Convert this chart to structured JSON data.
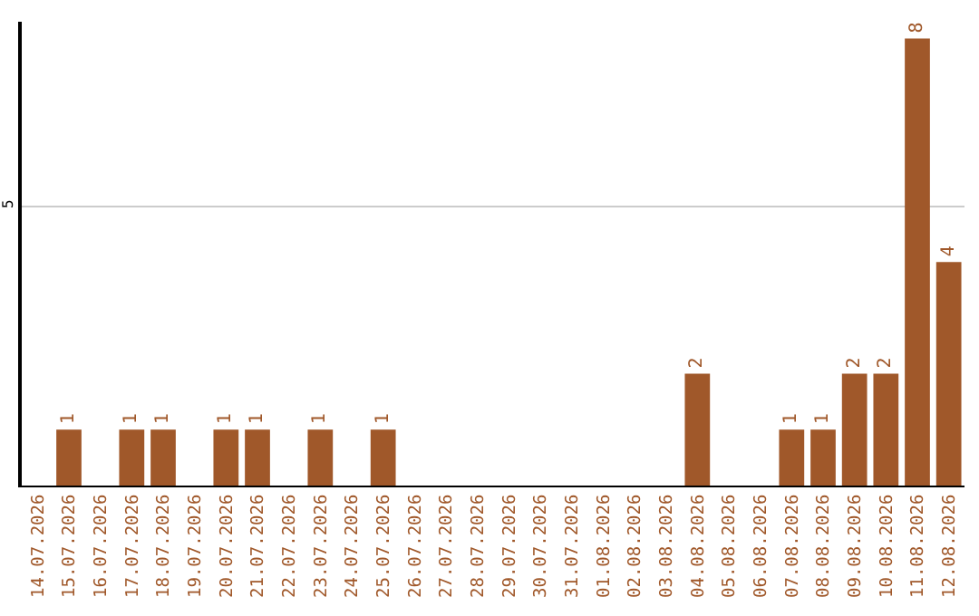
{
  "chart_data": {
    "type": "bar",
    "categories": [
      "14.07.2026",
      "15.07.2026",
      "16.07.2026",
      "17.07.2026",
      "18.07.2026",
      "19.07.2026",
      "20.07.2026",
      "21.07.2026",
      "22.07.2026",
      "23.07.2026",
      "24.07.2026",
      "25.07.2026",
      "26.07.2026",
      "27.07.2026",
      "28.07.2026",
      "29.07.2026",
      "30.07.2026",
      "31.07.2026",
      "01.08.2026",
      "02.08.2026",
      "03.08.2026",
      "04.08.2026",
      "05.08.2026",
      "06.08.2026",
      "07.08.2026",
      "08.08.2026",
      "09.08.2026",
      "10.08.2026",
      "11.08.2026",
      "12.08.2026"
    ],
    "values": [
      null,
      1,
      null,
      1,
      1,
      null,
      1,
      1,
      null,
      1,
      null,
      1,
      null,
      null,
      null,
      null,
      null,
      null,
      null,
      null,
      null,
      2,
      null,
      null,
      1,
      1,
      2,
      2,
      8,
      4
    ],
    "color": "#a0582a",
    "ylim": [
      0,
      8.3
    ],
    "yticks": [
      5
    ],
    "grid": "y",
    "data_labels": true
  }
}
